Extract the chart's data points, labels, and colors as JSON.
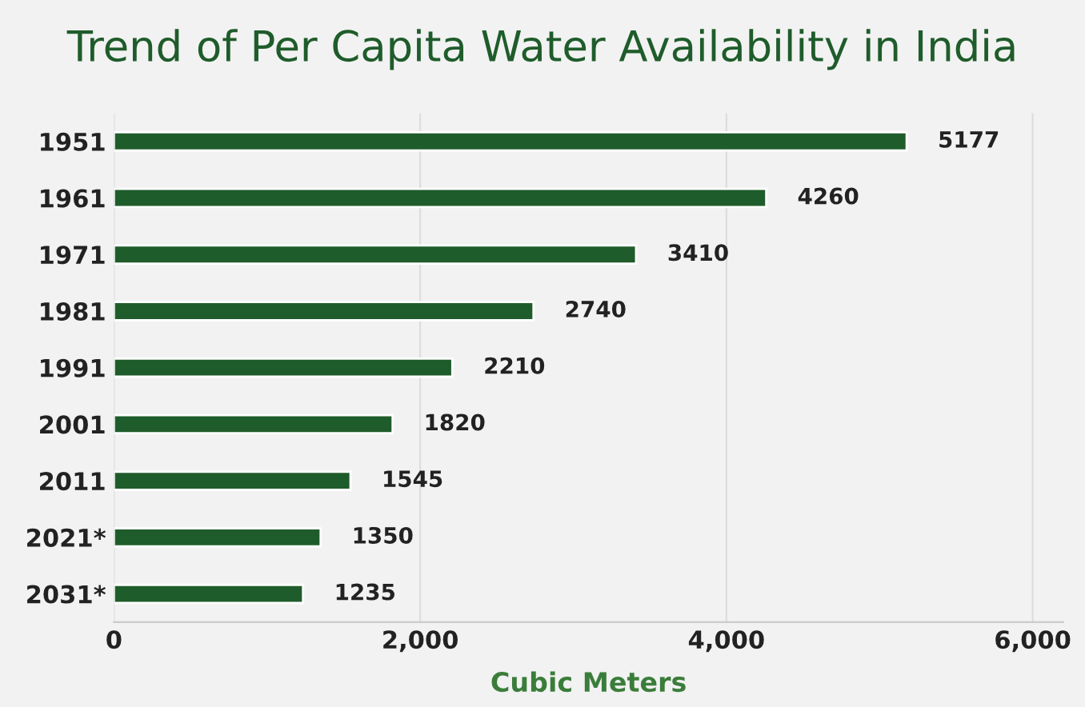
{
  "chart_data": {
    "type": "bar",
    "orientation": "horizontal",
    "title": "Trend of Per Capita Water Availability in India",
    "xlabel": "Cubic Meters",
    "categories": [
      "1951",
      "1961",
      "1971",
      "1981",
      "1991",
      "2001",
      "2011",
      "2021*",
      "2031*"
    ],
    "values": [
      5177,
      4260,
      3410,
      2740,
      2210,
      1820,
      1545,
      1350,
      1235
    ],
    "color": "#1f5c2b",
    "data_labels": true,
    "grid": "x",
    "xlim": [
      0,
      6200
    ],
    "xticks": [
      0,
      {
        "value": 2000,
        "label": "2,000"
      },
      {
        "value": 4000,
        "label": "4,000"
      },
      {
        "value": 6000,
        "label": "6,000"
      }
    ]
  }
}
